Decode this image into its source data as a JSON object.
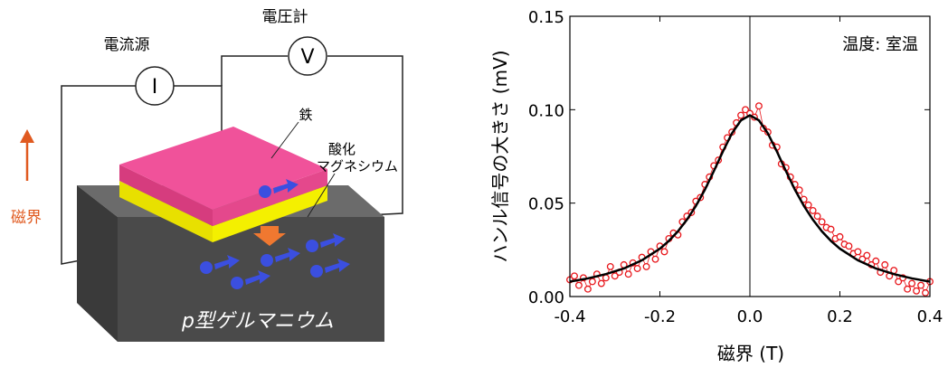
{
  "diagram": {
    "labels": {
      "current_source": "電流源",
      "current_symbol": "I",
      "voltmeter": "電圧計",
      "voltage_symbol": "V",
      "iron": "鉄",
      "oxide_1": "酸化",
      "oxide_2": "マグネシウム",
      "field": "磁界",
      "substrate": "p型ゲルマニウム"
    }
  },
  "chart_data": {
    "type": "scatter",
    "xlabel": "磁界 (T)",
    "ylabel": "ハンル信号の大きさ (mV)",
    "annotation": "温度: 室温",
    "xlim": [
      -0.4,
      0.4
    ],
    "ylim": [
      0,
      0.15
    ],
    "xticks": [
      -0.4,
      -0.2,
      {
        "value": 0,
        "label": "0.0"
      },
      0.2,
      0.4
    ],
    "yticks": [
      {
        "value": 0,
        "label": "0.00"
      },
      {
        "value": 0.05,
        "label": "0.05"
      },
      {
        "value": 0.1,
        "label": "0.10"
      },
      {
        "value": 0.15,
        "label": "0.15"
      }
    ],
    "zero_line": true,
    "series": [
      {
        "type": "scatter",
        "color": "#e8161b",
        "x": [
          -0.4,
          -0.39,
          -0.38,
          -0.37,
          -0.36,
          -0.35,
          -0.34,
          -0.33,
          -0.32,
          -0.31,
          -0.3,
          -0.29,
          -0.28,
          -0.27,
          -0.26,
          -0.25,
          -0.24,
          -0.23,
          -0.22,
          -0.21,
          -0.2,
          -0.19,
          -0.18,
          -0.17,
          -0.16,
          -0.15,
          -0.14,
          -0.13,
          -0.12,
          -0.11,
          -0.1,
          -0.09,
          -0.08,
          -0.07,
          -0.06,
          -0.05,
          -0.04,
          -0.03,
          -0.02,
          -0.01,
          0,
          0.01,
          0.02,
          0.03,
          0.04,
          0.05,
          0.06,
          0.07,
          0.08,
          0.09,
          0.1,
          0.11,
          0.12,
          0.13,
          0.14,
          0.15,
          0.16,
          0.17,
          0.18,
          0.19,
          0.2,
          0.21,
          0.22,
          0.23,
          0.24,
          0.25,
          0.26,
          0.27,
          0.28,
          0.29,
          0.3,
          0.31,
          0.32,
          0.33,
          0.34,
          0.35,
          0.36,
          0.37,
          0.38,
          0.39,
          0.4
        ],
        "values": [
          0.009,
          0.011,
          0.006,
          0.01,
          0.004,
          0.008,
          0.012,
          0.007,
          0.01,
          0.016,
          0.011,
          0.013,
          0.017,
          0.012,
          0.018,
          0.015,
          0.021,
          0.016,
          0.024,
          0.02,
          0.027,
          0.024,
          0.031,
          0.034,
          0.033,
          0.04,
          0.043,
          0.045,
          0.051,
          0.053,
          0.06,
          0.064,
          0.07,
          0.073,
          0.08,
          0.085,
          0.088,
          0.093,
          0.097,
          0.1,
          0.098,
          0.096,
          0.102,
          0.09,
          0.088,
          0.081,
          0.08,
          0.071,
          0.069,
          0.064,
          0.06,
          0.057,
          0.052,
          0.049,
          0.046,
          0.043,
          0.04,
          0.037,
          0.036,
          0.031,
          0.032,
          0.028,
          0.027,
          0.023,
          0.024,
          0.02,
          0.022,
          0.017,
          0.019,
          0.013,
          0.017,
          0.011,
          0.014,
          0.008,
          0.01,
          0.004,
          0.007,
          0.003,
          0.006,
          0.002,
          0.008
        ]
      },
      {
        "type": "line",
        "color": "#000000",
        "x": [
          -0.4,
          -0.36,
          -0.32,
          -0.28,
          -0.24,
          -0.2,
          -0.18,
          -0.16,
          -0.14,
          -0.12,
          -0.1,
          -0.08,
          -0.06,
          -0.04,
          -0.02,
          0,
          0.02,
          0.04,
          0.06,
          0.08,
          0.1,
          0.12,
          0.14,
          0.16,
          0.18,
          0.2,
          0.24,
          0.28,
          0.32,
          0.36,
          0.4
        ],
        "values": [
          0.008,
          0.0097,
          0.012,
          0.015,
          0.0194,
          0.0256,
          0.0298,
          0.0349,
          0.0411,
          0.0485,
          0.0572,
          0.0672,
          0.0776,
          0.0873,
          0.0943,
          0.097,
          0.0943,
          0.0873,
          0.0776,
          0.0672,
          0.0572,
          0.0485,
          0.0411,
          0.0349,
          0.0298,
          0.0256,
          0.0194,
          0.015,
          0.012,
          0.0097,
          0.008
        ]
      }
    ]
  }
}
